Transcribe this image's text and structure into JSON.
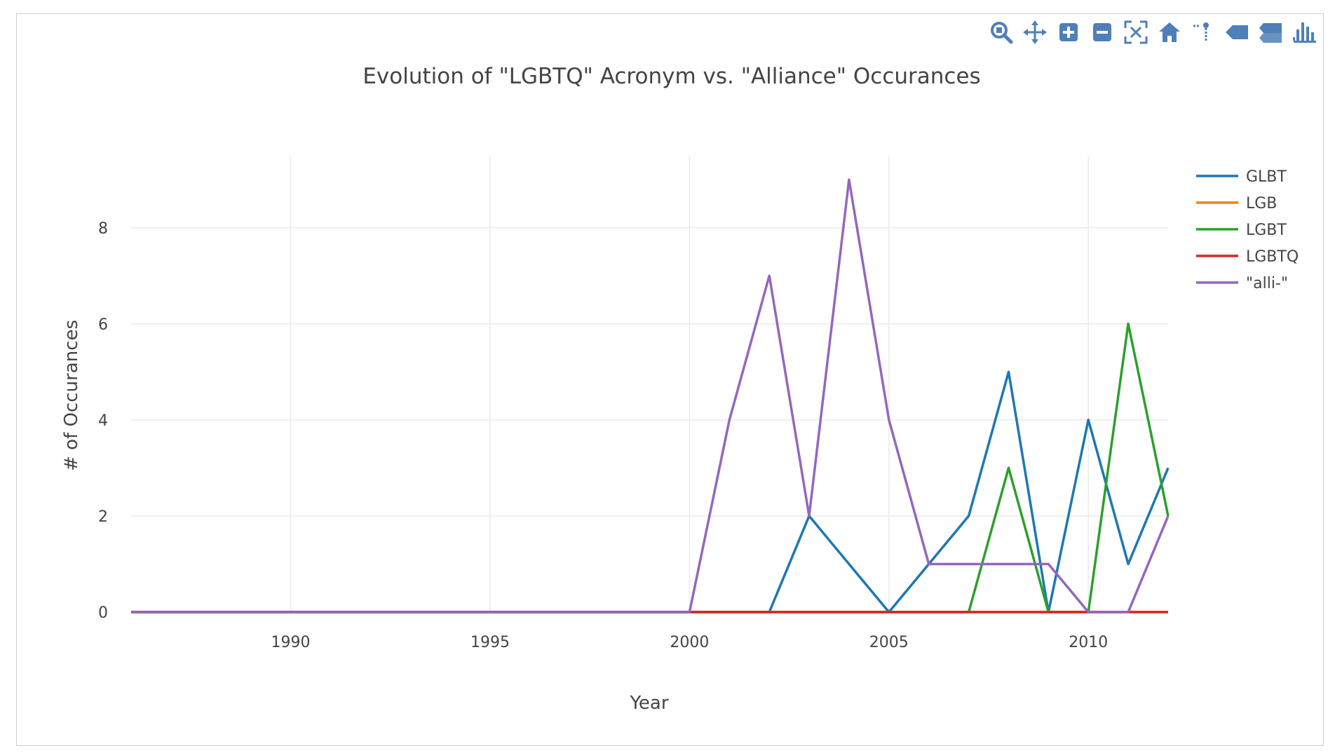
{
  "toolbar": {
    "buttons": [
      {
        "name": "zoom-icon"
      },
      {
        "name": "pan-icon"
      },
      {
        "name": "zoom-in-icon"
      },
      {
        "name": "zoom-out-icon"
      },
      {
        "name": "autoscale-icon"
      },
      {
        "name": "reset-axes-icon"
      },
      {
        "name": "spike-lines-icon"
      },
      {
        "name": "hover-closest-icon"
      },
      {
        "name": "hover-compare-icon"
      },
      {
        "name": "plotly-logo-icon"
      }
    ],
    "icon_color": "#4f7fb8"
  },
  "chart_data": {
    "type": "line",
    "title": "Evolution of \"LGBTQ\" Acronym vs. \"Alliance\" Occurances",
    "xlabel": "Year",
    "ylabel": "# of Occurances",
    "xlim": [
      1986,
      2012
    ],
    "ylim": [
      0,
      9.5
    ],
    "xticks": [
      1990,
      1995,
      2000,
      2005,
      2010
    ],
    "yticks": [
      0,
      2,
      4,
      6,
      8
    ],
    "grid": true,
    "legend_position": "right",
    "x": [
      1986,
      1987,
      1988,
      1989,
      1990,
      1991,
      1992,
      1993,
      1994,
      1995,
      1996,
      1997,
      1998,
      1999,
      2000,
      2001,
      2002,
      2003,
      2004,
      2005,
      2006,
      2007,
      2008,
      2009,
      2010,
      2011,
      2012
    ],
    "series": [
      {
        "name": "GLBT",
        "color": "#1f77b4",
        "values": [
          0,
          0,
          0,
          0,
          0,
          0,
          0,
          0,
          0,
          0,
          0,
          0,
          0,
          0,
          0,
          0,
          0,
          2,
          1,
          0,
          1,
          2,
          5,
          0,
          4,
          1,
          3
        ]
      },
      {
        "name": "LGB",
        "color": "#ff7f0e",
        "values": [
          0,
          0,
          0,
          0,
          0,
          0,
          0,
          0,
          0,
          0,
          0,
          0,
          0,
          0,
          0,
          0,
          0,
          0,
          0,
          0,
          0,
          0,
          0,
          0,
          0,
          0,
          0
        ]
      },
      {
        "name": "LGBT",
        "color": "#2ca02c",
        "values": [
          0,
          0,
          0,
          0,
          0,
          0,
          0,
          0,
          0,
          0,
          0,
          0,
          0,
          0,
          0,
          0,
          0,
          0,
          0,
          0,
          0,
          0,
          3,
          0,
          0,
          6,
          2
        ]
      },
      {
        "name": "LGBTQ",
        "color": "#d62728",
        "values": [
          0,
          0,
          0,
          0,
          0,
          0,
          0,
          0,
          0,
          0,
          0,
          0,
          0,
          0,
          0,
          0,
          0,
          0,
          0,
          0,
          0,
          0,
          0,
          0,
          0,
          0,
          0
        ]
      },
      {
        "name": "\"alli-\"",
        "color": "#9467bd",
        "values": [
          0,
          0,
          0,
          0,
          0,
          0,
          0,
          0,
          0,
          0,
          0,
          0,
          0,
          0,
          0,
          4,
          7,
          2,
          9,
          4,
          1,
          1,
          1,
          1,
          0,
          0,
          2
        ]
      }
    ]
  }
}
